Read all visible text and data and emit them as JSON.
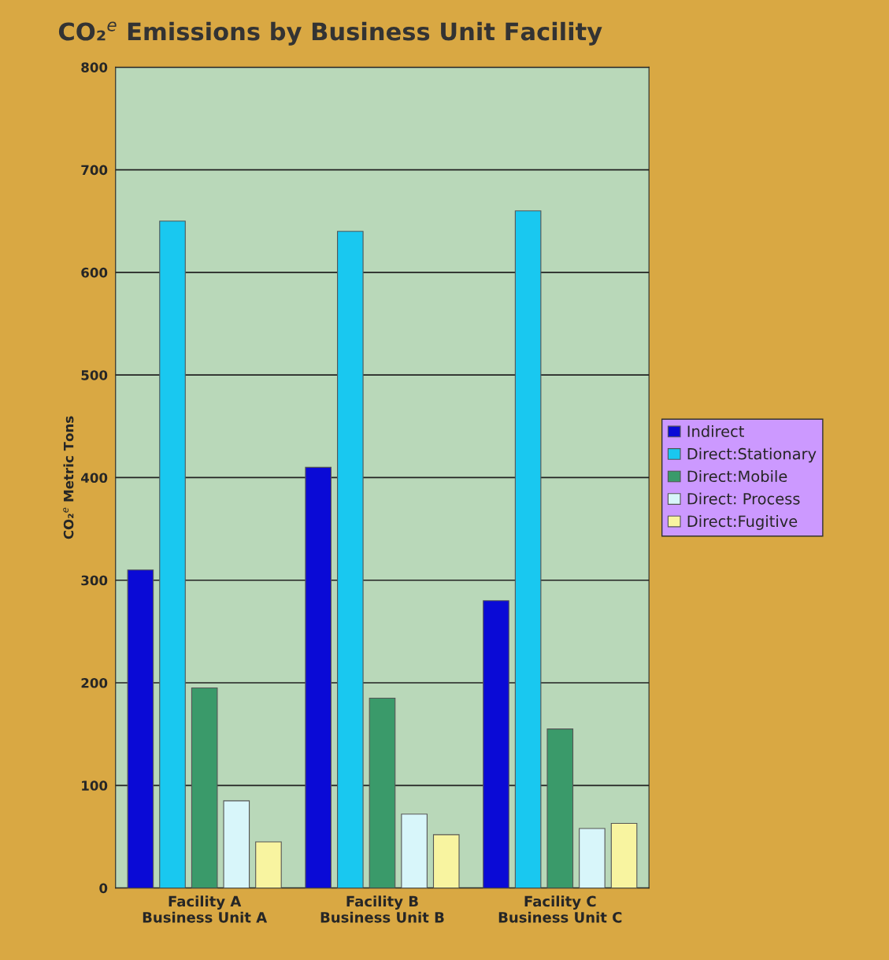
{
  "chart_data": {
    "type": "bar",
    "title": "CO₂$^{e}$ Emissions by Business Unit Facility",
    "ylabel": "CO₂$^{e}$ Metric Tons",
    "categories": [
      "Facility A\nBusiness Unit A",
      "Facility B\nBusiness Unit B",
      "Facility C\nBusiness Unit C"
    ],
    "series": [
      {
        "name": "Indirect",
        "color": "#0a0ad6",
        "values": [
          310,
          410,
          280
        ]
      },
      {
        "name": "Direct:Stationary",
        "color": "#19c8f0",
        "values": [
          650,
          640,
          660
        ]
      },
      {
        "name": "Direct:Mobile",
        "color": "#3a9a6a",
        "values": [
          195,
          185,
          155
        ]
      },
      {
        "name": "Direct: Process",
        "color": "#d8f6fa",
        "values": [
          85,
          72,
          58
        ]
      },
      {
        "name": "Direct:Fugitive",
        "color": "#f8f4a0",
        "values": [
          45,
          52,
          63
        ]
      }
    ],
    "ylim": [
      0,
      800
    ],
    "yticks": [
      0,
      100,
      200,
      300,
      400,
      500,
      600,
      700,
      800
    ],
    "grid": "y",
    "legend": "right"
  }
}
